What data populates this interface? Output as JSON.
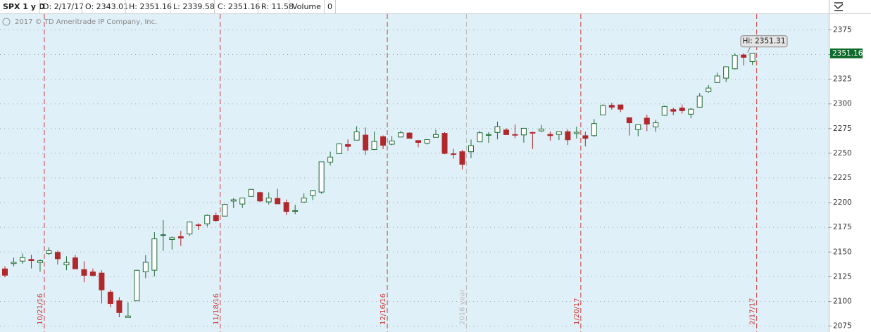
{
  "header": {
    "symbol": "SPX 1 y D",
    "fields": [
      "D: 2/17/17",
      "O: 2343.01",
      "H: 2351.16",
      "L: 2339.58",
      "C: 2351.16",
      "R: 11.58",
      "Volume",
      "0"
    ]
  },
  "copyright": "2017 © TD Ameritrade IP Company, Inc.",
  "chart_data": {
    "type": "candlestick",
    "categories": [
      null,
      null,
      null,
      null,
      "10/21/16",
      null,
      null,
      null,
      null,
      null,
      null,
      null,
      null,
      null,
      null,
      null,
      null,
      null,
      null,
      null,
      null,
      null,
      null,
      null,
      "11/18/16",
      null,
      null,
      null,
      null,
      null,
      null,
      null,
      null,
      null,
      null,
      null,
      null,
      null,
      null,
      null,
      null,
      null,
      null,
      "12/16/16",
      null,
      null,
      null,
      null,
      null,
      null,
      null,
      null,
      "2016 year",
      null,
      null,
      null,
      null,
      null,
      null,
      null,
      null,
      null,
      null,
      null,
      null,
      "1/20/17",
      null,
      null,
      null,
      null,
      null,
      null,
      null,
      null,
      null,
      null,
      null,
      null,
      null,
      null,
      null,
      null,
      null,
      null,
      null,
      "2/17/17"
    ],
    "open": [
      2132.9,
      2138.3,
      2140.8,
      2142.5,
      2139.4,
      2148.5,
      2149.7,
      2137.0,
      2144.1,
      2132.2,
      2129.8,
      2128.7,
      2109.4,
      2100.6,
      2083.8,
      2100.6,
      2129.9,
      2131.6,
      2167.5,
      2162.7,
      2165.6,
      2168.3,
      2177.5,
      2178.6,
      2186.9,
      2186.4,
      2201.6,
      2198.6,
      2206.3,
      2210.2,
      2200.8,
      2204.3,
      2200.2,
      2191.1,
      2200.6,
      2207.3,
      2210.7,
      2241.1,
      2249.7,
      2258.8,
      2263.3,
      2268.4,
      2253.8,
      2266.8,
      2259.2,
      2266.5,
      2270.5,
      2262.9,
      2260.3,
      2266.2,
      2270.2,
      2249.5,
      2251.6,
      2251.6,
      2261.6,
      2268.2,
      2271.1,
      2273.6,
      2269.0,
      2268.6,
      2271.1,
      2272.7,
      2269.1,
      2269.1,
      2271.9,
      2270.0,
      2267.8,
      2267.9,
      2288.9,
      2298.6,
      2299.0,
      2286.0,
      2274.0,
      2285.6,
      2276.7,
      2288.5,
      2294.3,
      2295.9,
      2289.6,
      2296.7,
      2312.3,
      2321.7,
      2326.1,
      2335.6,
      2349.6,
      2343.01
    ],
    "high": [
      2135.6,
      2144.4,
      2148.4,
      2147.2,
      2142.6,
      2154.8,
      2151.4,
      2145.7,
      2147.1,
      2140.7,
      2133.3,
      2131.5,
      2111.8,
      2104.3,
      2099.1,
      2132.0,
      2146.9,
      2170.1,
      2182.3,
      2165.9,
      2171.4,
      2180.8,
      2179.2,
      2188.1,
      2189.9,
      2198.7,
      2204.8,
      2204.7,
      2213.4,
      2211.1,
      2210.5,
      2214.1,
      2203.1,
      2197.9,
      2209.4,
      2212.8,
      2241.6,
      2251.7,
      2259.8,
      2264.0,
      2277.5,
      2276.2,
      2272.1,
      2268.1,
      2267.5,
      2272.6,
      2271.2,
      2263.2,
      2263.8,
      2273.8,
      2271.3,
      2254.5,
      2253.6,
      2263.9,
      2272.8,
      2271.5,
      2282.1,
      2275.5,
      2279.3,
      2275.3,
      2271.8,
      2278.7,
      2272.1,
      2272.0,
      2274.3,
      2277.0,
      2271.8,
      2284.6,
      2299.6,
      2301.0,
      2299.0,
      2286.0,
      2279.1,
      2289.1,
      2284.0,
      2298.3,
      2296.2,
      2299.4,
      2295.9,
      2311.1,
      2319.2,
      2331.6,
      2337.6,
      2351.3,
      2351.31,
      2351.16
    ],
    "low": [
      2124.4,
      2135.5,
      2138.2,
      2133.4,
      2130.1,
      2146.9,
      2137.4,
      2131.6,
      2132.5,
      2119.4,
      2125.5,
      2097.9,
      2094.0,
      2084.0,
      2083.8,
      2100.6,
      2123.6,
      2125.4,
      2151.2,
      2152.5,
      2156.1,
      2166.4,
      2172.2,
      2175.8,
      2180.4,
      2186.4,
      2194.5,
      2194.5,
      2206.3,
      2200.4,
      2198.2,
      2198.8,
      2187.4,
      2188.4,
      2200.0,
      2202.7,
      2208.9,
      2237.6,
      2249.2,
      2252.4,
      2263.3,
      2248.4,
      2253.8,
      2254.2,
      2258.2,
      2266.2,
      2265.2,
      2256.1,
      2258.8,
      2266.2,
      2249.1,
      2244.6,
      2233.6,
      2245.1,
      2261.6,
      2260.5,
      2264.1,
      2268.9,
      2265.3,
      2260.8,
      2254.3,
      2271.5,
      2262.8,
      2263.4,
      2258.4,
      2265.0,
      2257.0,
      2266.7,
      2288.9,
      2294.1,
      2291.6,
      2268.0,
      2267.2,
      2272.4,
      2271.7,
      2287.9,
      2288.6,
      2290.2,
      2285.4,
      2296.6,
      2311.1,
      2321.4,
      2322.2,
      2334.8,
      2338.9,
      2339.58
    ],
    "close": [
      2126.5,
      2139.6,
      2144.3,
      2141.3,
      2141.2,
      2151.3,
      2143.2,
      2139.4,
      2133.0,
      2126.4,
      2126.2,
      2111.7,
      2097.9,
      2088.7,
      2085.2,
      2131.5,
      2139.6,
      2163.3,
      2167.5,
      2164.5,
      2164.2,
      2180.4,
      2176.9,
      2187.1,
      2181.9,
      2198.2,
      2202.9,
      2204.7,
      2213.4,
      2201.7,
      2204.7,
      2198.8,
      2191.1,
      2191.9,
      2204.7,
      2212.2,
      2241.4,
      2246.2,
      2259.5,
      2257.0,
      2271.7,
      2253.3,
      2262.0,
      2258.1,
      2262.5,
      2270.8,
      2265.2,
      2261.0,
      2263.8,
      2268.9,
      2249.9,
      2249.3,
      2238.8,
      2257.8,
      2270.8,
      2269.0,
      2277.0,
      2268.9,
      2268.9,
      2275.3,
      2270.4,
      2274.6,
      2267.9,
      2271.9,
      2263.7,
      2271.3,
      2265.2,
      2280.1,
      2298.4,
      2296.7,
      2294.7,
      2280.9,
      2278.9,
      2279.6,
      2280.9,
      2297.4,
      2292.6,
      2293.1,
      2294.7,
      2307.9,
      2316.1,
      2328.3,
      2337.6,
      2349.2,
      2347.2,
      2351.16
    ],
    "up_color": "#1f6b35",
    "down_color": "#b0282c",
    "ylim": [
      2069,
      2391
    ],
    "yticks": [
      2075,
      2100,
      2125,
      2150,
      2175,
      2200,
      2225,
      2250,
      2275,
      2300,
      2325,
      2350,
      2375
    ],
    "grid": true,
    "last_price": 2351.16,
    "high_marker": {
      "label": "Hi: 2351.31",
      "value": 2351.31
    }
  }
}
